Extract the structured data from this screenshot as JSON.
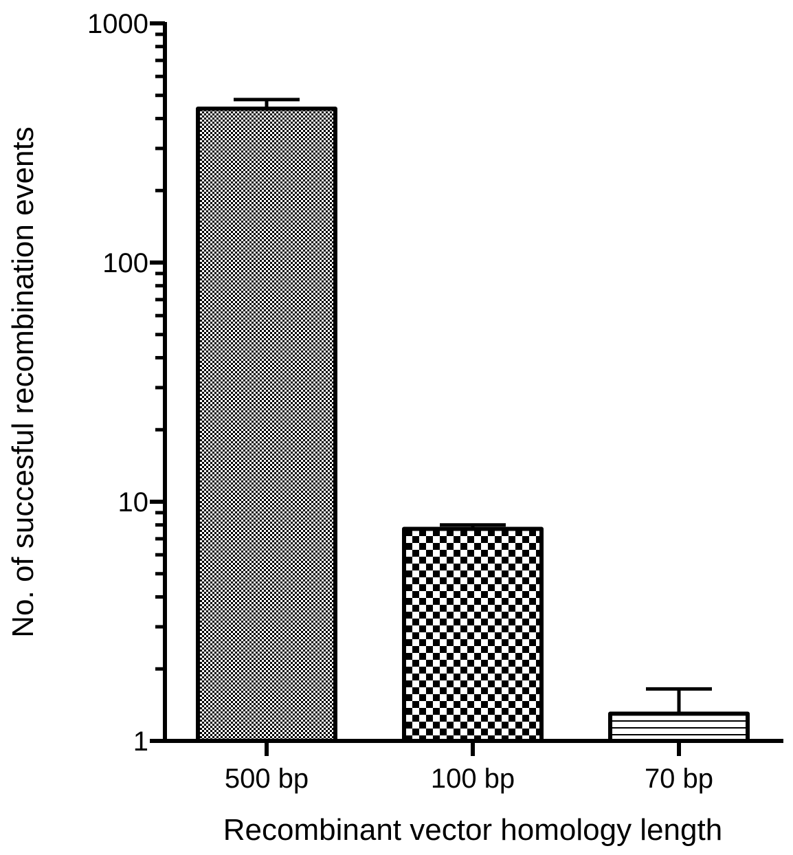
{
  "chart_data": {
    "type": "bar",
    "title": "",
    "xlabel": "Recombinant vector homology length",
    "ylabel": "No. of succesful recombination events",
    "yscale": "log",
    "ylim": [
      1,
      1000
    ],
    "yticks": [
      1,
      10,
      100,
      1000
    ],
    "ytick_labels": [
      "1",
      "10",
      "100",
      "1000"
    ],
    "categories": [
      "500 bp",
      "100 bp",
      "70 bp"
    ],
    "values": [
      440,
      7.7,
      1.3
    ],
    "error_upper": [
      480,
      8.0,
      1.65
    ],
    "patterns": [
      "fine-check",
      "coarse-check",
      "horizontal-lines"
    ],
    "grid": false,
    "legend": "none"
  }
}
